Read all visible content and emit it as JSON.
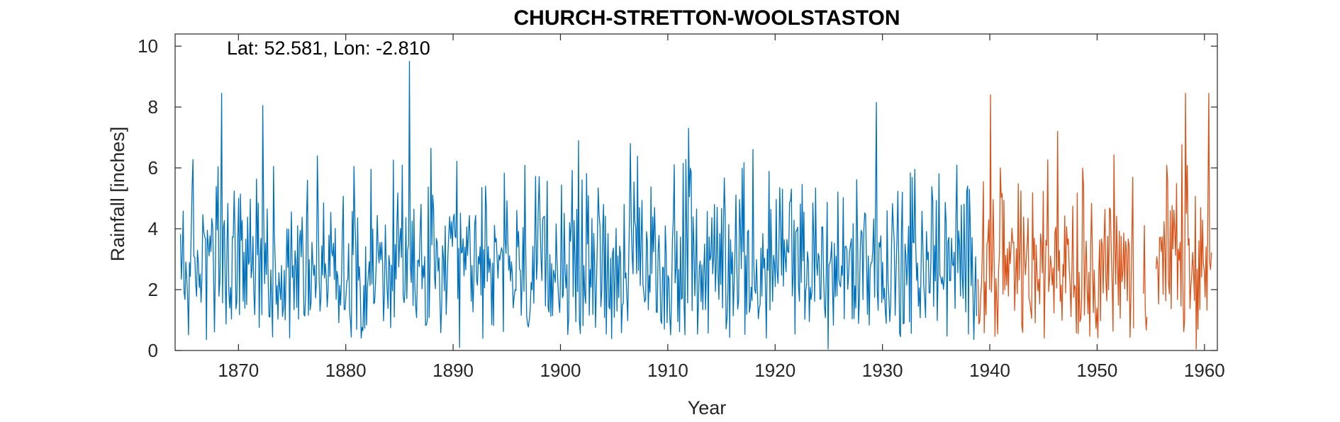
{
  "chart_data": {
    "type": "line",
    "title": "CHURCH-STRETTON-WOOLSTASTON",
    "annotation": "Lat: 52.581, Lon: -2.810",
    "xlabel": "Year",
    "ylabel": "Rainfall [inches]",
    "xlim": [
      1864.1,
      1961.2
    ],
    "ylim": [
      0,
      10.4
    ],
    "x_ticks": [
      1870,
      1880,
      1890,
      1900,
      1910,
      1920,
      1930,
      1940,
      1950,
      1960
    ],
    "y_ticks": [
      0,
      2,
      4,
      6,
      8,
      10
    ],
    "grid": false,
    "box": true,
    "series": [
      {
        "color": "#0072BD",
        "x_range": [
          1864.6,
          1938.8
        ],
        "points_per_year": 12,
        "description_values": "monthly rainfall, mostly 0.5-6.5 in",
        "peaks": [
          {
            "x": 1868.4,
            "y": 8.45
          },
          {
            "x": 1872.3,
            "y": 8.05
          },
          {
            "x": 1885.9,
            "y": 9.5
          },
          {
            "x": 1911.9,
            "y": 7.3
          },
          {
            "x": 1929.4,
            "y": 8.15
          },
          {
            "x": 1890.6,
            "y": 0.1
          },
          {
            "x": 1924.9,
            "y": 0.05
          }
        ]
      },
      {
        "color": "#D95319",
        "x_range": [
          1938.9,
          1960.7
        ],
        "gaps": [
          [
            1953.4,
            1954.3
          ],
          [
            1954.7,
            1955.4
          ]
        ],
        "points_per_year": 12,
        "description_values": "monthly rainfall, mostly 0.5-7 in",
        "peaks": [
          {
            "x": 1940.1,
            "y": 8.4
          },
          {
            "x": 1946.3,
            "y": 7.2
          },
          {
            "x": 1958.2,
            "y": 8.45
          },
          {
            "x": 1960.4,
            "y": 8.45
          },
          {
            "x": 1959.2,
            "y": 0.05
          }
        ]
      }
    ]
  }
}
